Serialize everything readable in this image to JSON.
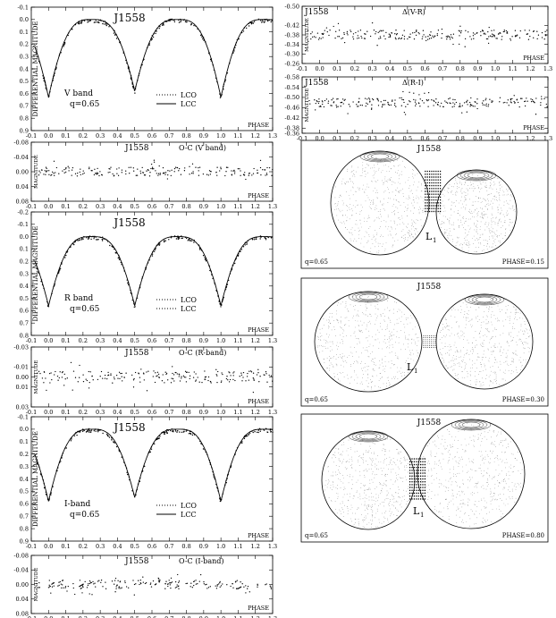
{
  "chart_data": [
    {
      "id": "lc-v",
      "type": "line",
      "title": "J1558",
      "band_label": "V band",
      "q_label": "q=0.65",
      "xlabel": "PHASE",
      "ylabel": "DIFFERENTIAL MAGNITUDE",
      "xlim": [
        -0.1,
        1.3
      ],
      "ylim": [
        -0.1,
        0.9
      ],
      "y_inverted": true,
      "xticks": [
        "-0.1",
        "0.0",
        "0.1",
        "0.2",
        "0.3",
        "0.4",
        "0.5",
        "0.6",
        "0.7",
        "0.8",
        "0.9",
        "1.0",
        "1.1",
        "1.2",
        "1.3"
      ],
      "yticks": [
        "-0.1",
        "0.0",
        "0.1",
        "0.2",
        "0.3",
        "0.4",
        "0.5",
        "0.6",
        "0.7",
        "0.8",
        "0.9"
      ],
      "legend": [
        {
          "name": "LCO",
          "style": "dotted"
        },
        {
          "name": "LCC",
          "style": "solid"
        }
      ],
      "model": {
        "base": 0.0,
        "depth_primary": 0.63,
        "depth_secondary": 0.58,
        "shape": 1.6
      },
      "scatter": 0.015
    },
    {
      "id": "lc-r",
      "type": "line",
      "title": "J1558",
      "band_label": "R  band",
      "q_label": "q=0.65",
      "xlabel": "PHASE",
      "ylabel": "DIFFERENTIAL MAGNITUDE",
      "xlim": [
        -0.1,
        1.3
      ],
      "ylim": [
        -0.2,
        0.8
      ],
      "y_inverted": true,
      "xticks": [
        "-0.1",
        "0.0",
        "0.1",
        "0.2",
        "0.3",
        "0.4",
        "0.5",
        "0.6",
        "0.7",
        "0.8",
        "0.9",
        "1.0",
        "1.1",
        "1.2",
        "1.3"
      ],
      "yticks": [
        "-0.2",
        "-0.1",
        "0.0",
        "0.1",
        "0.2",
        "0.3",
        "0.4",
        "0.5",
        "0.6",
        "0.7",
        "0.8"
      ],
      "legend": [
        {
          "name": "LCO",
          "style": "dotted"
        },
        {
          "name": "LCC",
          "style": "dotted"
        }
      ],
      "model": {
        "base": 0.0,
        "depth_primary": 0.56,
        "depth_secondary": 0.56,
        "shape": 1.6
      },
      "scatter": 0.015
    },
    {
      "id": "lc-i",
      "type": "line",
      "title": "J1558",
      "band_label": "I-band",
      "q_label": "q=0.65",
      "xlabel": "PHASE",
      "ylabel": "DIFFERENTIAL MAGNITUDE",
      "xlim": [
        -0.1,
        1.3
      ],
      "ylim": [
        -0.1,
        0.9
      ],
      "y_inverted": true,
      "xticks": [
        "-0.1",
        "0.0",
        "0.1",
        "0.2",
        "0.3",
        "0.4",
        "0.5",
        "0.6",
        "0.7",
        "0.8",
        "0.9",
        "1.0",
        "1.1",
        "1.2",
        "1.3"
      ],
      "yticks": [
        "-0.1",
        "0.0",
        "0.1",
        "0.2",
        "0.3",
        "0.4",
        "0.5",
        "0.6",
        "0.7",
        "0.8",
        "0.9"
      ],
      "legend": [
        {
          "name": "LCO",
          "style": "dotted"
        },
        {
          "name": "LCC",
          "style": "solid"
        }
      ],
      "model": {
        "base": 0.0,
        "depth_primary": 0.58,
        "depth_secondary": 0.55,
        "shape": 1.6
      },
      "scatter": 0.015
    },
    {
      "id": "res-v",
      "type": "scatter",
      "title": "J1558",
      "label": "O-C (V band)",
      "xlabel": "PHASE",
      "ylabel": "MAGNITUDE",
      "xlim": [
        -0.1,
        1.3
      ],
      "ylim": [
        -0.08,
        0.08
      ],
      "y_inverted": true,
      "xticks": [
        "-0.1",
        "0.0",
        "0.1",
        "0.2",
        "0.3",
        "0.4",
        "0.5",
        "0.6",
        "0.7",
        "0.8",
        "0.9",
        "1.0",
        "1.1",
        "1.2",
        "1.3"
      ],
      "yticks": [
        "-0.08",
        "-0.04",
        "0.00",
        "0.04",
        "0.08"
      ],
      "center": 0.0,
      "scatter": 0.012
    },
    {
      "id": "res-r",
      "type": "scatter",
      "title": "J1558",
      "label": "O-C (R-band)",
      "xlabel": "PHASE",
      "ylabel": "MAGNITUDE",
      "xlim": [
        -0.1,
        1.3
      ],
      "ylim": [
        -0.03,
        0.03
      ],
      "y_inverted": true,
      "xticks": [
        "-0.1",
        "0.0",
        "0.1",
        "0.2",
        "0.3",
        "0.4",
        "0.5",
        "0.6",
        "0.7",
        "0.8",
        "0.9",
        "1.0",
        "1.1",
        "1.2",
        "1.3"
      ],
      "yticks": [
        "-0.03",
        "-0.01",
        "0.00",
        "0.01",
        "0.03"
      ],
      "center": 0.0,
      "scatter": 0.006
    },
    {
      "id": "res-i",
      "type": "scatter",
      "title": "J1558",
      "label": "O-C (I-band)",
      "xlabel": "PHASE",
      "ylabel": "MAGNITUDE",
      "xlim": [
        -0.1,
        1.3
      ],
      "ylim": [
        -0.08,
        0.08
      ],
      "y_inverted": true,
      "xticks": [
        "-0.1",
        "0.0",
        "0.1",
        "0.2",
        "0.3",
        "0.4",
        "0.5",
        "0.6",
        "0.7",
        "0.8",
        "0.9",
        "1.0",
        "1.1",
        "1.2",
        "1.3"
      ],
      "yticks": [
        "-0.08",
        "-0.04",
        "0.00",
        "0.04",
        "0.08"
      ],
      "center": 0.0,
      "scatter": 0.012
    },
    {
      "id": "col-vr",
      "type": "scatter",
      "title": "J1558",
      "label": "Δ(V-R)",
      "xlabel": "PHASE",
      "ylabel": "MAGNITUDE",
      "xlim": [
        -0.1,
        1.3
      ],
      "ylim": [
        -0.5,
        -0.26
      ],
      "y_inverted": true,
      "xticks": [
        "-0.1",
        "0.0",
        "0.1",
        "0.2",
        "0.3",
        "0.4",
        "0.5",
        "0.6",
        "0.7",
        "0.8",
        "0.9",
        "1.0",
        "1.1",
        "1.2",
        "1.3"
      ],
      "yticks": [
        "-0.50",
        "-0.42",
        "-0.38",
        "-0.34",
        "-0.30",
        "-0.26"
      ],
      "center": -0.38,
      "scatter": 0.02
    },
    {
      "id": "col-ri",
      "type": "scatter",
      "title": "J1558",
      "label": "Δ(R-I)",
      "xlabel": "PHASE",
      "ylabel": "MAGNITUDE",
      "xlim": [
        -0.1,
        1.3
      ],
      "ylim": [
        -0.58,
        -0.36
      ],
      "y_inverted": true,
      "xticks": [
        "-0.1",
        "0.0",
        "0.1",
        "0.2",
        "0.3",
        "0.4",
        "0.5",
        "0.6",
        "0.7",
        "0.8",
        "0.9",
        "1.0",
        "1.1",
        "1.2",
        "1.3"
      ],
      "yticks": [
        "-0.58",
        "-0.54",
        "-0.50",
        "-0.46",
        "-0.42",
        "-0.38",
        "-0.36"
      ],
      "center": -0.48,
      "scatter": 0.018
    }
  ],
  "models": [
    {
      "id": "model-1",
      "title": "J1558",
      "q_label": "q=0.65",
      "phase_label": "PHASE=0.15",
      "lagrange": "L",
      "lagrange_sub": "1",
      "neck": "front"
    },
    {
      "id": "model-2",
      "title": "J1558",
      "q_label": "q=0.65",
      "phase_label": "PHASE=0.30",
      "lagrange": "L",
      "lagrange_sub": "1",
      "neck": "none"
    },
    {
      "id": "model-3",
      "title": "J1558",
      "q_label": "q=0.65",
      "phase_label": "PHASE=0.80",
      "lagrange": "L",
      "lagrange_sub": "1",
      "neck": "back"
    }
  ]
}
